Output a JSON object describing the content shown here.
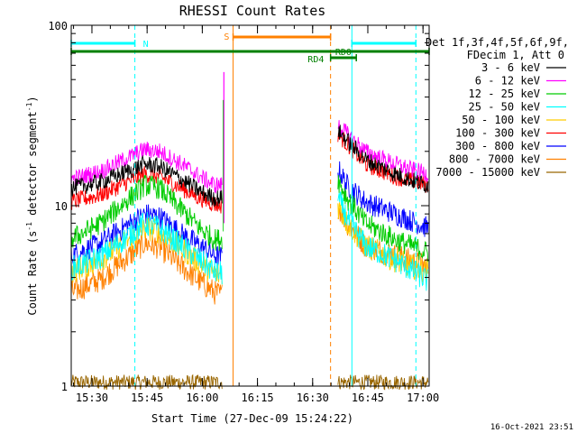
{
  "chart_data": {
    "type": "line",
    "title": "RHESSI Count Rates",
    "xlabel": "Start Time (27-Dec-09 15:24:22)",
    "ylabel_main": "Count Rate (s",
    "ylabel_sup1": "-1",
    "ylabel_mid": " detector segment",
    "ylabel_sup2": "-1",
    "ylabel_end": ")",
    "yscale": "log",
    "ylim": [
      1,
      100
    ],
    "xlim_minutes": [
      0,
      97.3
    ],
    "x_ticks": [
      {
        "label": "15:30",
        "min": 5.63
      },
      {
        "label": "15:45",
        "min": 20.63
      },
      {
        "label": "16:00",
        "min": 35.63
      },
      {
        "label": "16:15",
        "min": 50.63
      },
      {
        "label": "16:30",
        "min": 65.63
      },
      {
        "label": "16:45",
        "min": 80.63
      },
      {
        "label": "17:00",
        "min": 95.63
      }
    ],
    "y_ticks": [
      {
        "label": "1",
        "value": 1
      },
      {
        "label": "10",
        "value": 10
      },
      {
        "label": "100",
        "value": 100
      }
    ],
    "legend": {
      "header1": "Det 1f,3f,4f,5f,6f,9f,",
      "header2": "FDecim 1, Att 0",
      "position": "right"
    },
    "series": [
      {
        "name": "3 - 6 keV",
        "color": "#000000",
        "amp": 0.07,
        "segA": [
          {
            "t": 0,
            "v": 12.5
          },
          {
            "t": 8,
            "v": 13.5
          },
          {
            "t": 20,
            "v": 17
          },
          {
            "t": 24,
            "v": 16.5
          },
          {
            "t": 30,
            "v": 14
          },
          {
            "t": 35,
            "v": 12
          },
          {
            "t": 39,
            "v": 11
          },
          {
            "t": 41,
            "v": 11
          }
        ],
        "segB": [
          {
            "t": 72.5,
            "v": 26
          },
          {
            "t": 75,
            "v": 23
          },
          {
            "t": 80,
            "v": 18
          },
          {
            "t": 88,
            "v": 15
          },
          {
            "t": 94,
            "v": 13.5
          },
          {
            "t": 97,
            "v": 13
          }
        ]
      },
      {
        "name": "6 - 12 keV",
        "color": "#ff00ff",
        "amp": 0.07,
        "segA": [
          {
            "t": 0,
            "v": 14
          },
          {
            "t": 8,
            "v": 15.5
          },
          {
            "t": 20,
            "v": 20.5
          },
          {
            "t": 24,
            "v": 20
          },
          {
            "t": 30,
            "v": 17
          },
          {
            "t": 35,
            "v": 14.5
          },
          {
            "t": 39,
            "v": 13
          },
          {
            "t": 41,
            "v": 13
          }
        ],
        "segB": [
          {
            "t": 72.5,
            "v": 28
          },
          {
            "t": 75,
            "v": 25
          },
          {
            "t": 80,
            "v": 20
          },
          {
            "t": 88,
            "v": 17
          },
          {
            "t": 94,
            "v": 15.5
          },
          {
            "t": 97,
            "v": 15
          }
        ]
      },
      {
        "name": "12 - 25 keV",
        "color": "#00cc00",
        "amp": 0.09,
        "segA": [
          {
            "t": 0,
            "v": 6.5
          },
          {
            "t": 8,
            "v": 8
          },
          {
            "t": 20,
            "v": 13
          },
          {
            "t": 24,
            "v": 12.5
          },
          {
            "t": 30,
            "v": 9.5
          },
          {
            "t": 35,
            "v": 7.5
          },
          {
            "t": 39,
            "v": 6.5
          },
          {
            "t": 41,
            "v": 6.5
          }
        ],
        "segB": [
          {
            "t": 72.5,
            "v": 14
          },
          {
            "t": 75,
            "v": 11
          },
          {
            "t": 80,
            "v": 8
          },
          {
            "t": 88,
            "v": 6.5
          },
          {
            "t": 94,
            "v": 5.8
          },
          {
            "t": 97,
            "v": 5.5
          }
        ]
      },
      {
        "name": "25 - 50 keV",
        "color": "#00ffff",
        "amp": 0.1,
        "segA": [
          {
            "t": 0,
            "v": 4.5
          },
          {
            "t": 8,
            "v": 5.2
          },
          {
            "t": 20,
            "v": 8
          },
          {
            "t": 24,
            "v": 7.5
          },
          {
            "t": 30,
            "v": 6
          },
          {
            "t": 35,
            "v": 5
          },
          {
            "t": 39,
            "v": 4.3
          },
          {
            "t": 41,
            "v": 4.2
          }
        ],
        "segB": [
          {
            "t": 72.5,
            "v": 11
          },
          {
            "t": 75,
            "v": 8.5
          },
          {
            "t": 80,
            "v": 6
          },
          {
            "t": 88,
            "v": 5
          },
          {
            "t": 94,
            "v": 4.2
          },
          {
            "t": 97,
            "v": 3.8
          }
        ]
      },
      {
        "name": "50 - 100 keV",
        "color": "#ffcc00",
        "amp": 0.1,
        "segA": [
          {
            "t": 0,
            "v": 4.3
          },
          {
            "t": 8,
            "v": 5
          },
          {
            "t": 20,
            "v": 7.5
          },
          {
            "t": 24,
            "v": 7.2
          },
          {
            "t": 30,
            "v": 5.8
          },
          {
            "t": 35,
            "v": 4.8
          },
          {
            "t": 39,
            "v": 4.2
          },
          {
            "t": 41,
            "v": 4.1
          }
        ],
        "segB": [
          {
            "t": 72.5,
            "v": 10
          },
          {
            "t": 75,
            "v": 8
          },
          {
            "t": 80,
            "v": 6
          },
          {
            "t": 88,
            "v": 5
          },
          {
            "t": 94,
            "v": 4.5
          },
          {
            "t": 97,
            "v": 4.3
          }
        ]
      },
      {
        "name": "100 - 300 keV",
        "color": "#ff0000",
        "amp": 0.07,
        "segA": [
          {
            "t": 0,
            "v": 10.5
          },
          {
            "t": 8,
            "v": 11.5
          },
          {
            "t": 20,
            "v": 15
          },
          {
            "t": 24,
            "v": 14.5
          },
          {
            "t": 30,
            "v": 12.5
          },
          {
            "t": 35,
            "v": 11
          },
          {
            "t": 39,
            "v": 10.2
          },
          {
            "t": 41,
            "v": 10
          }
        ],
        "segB": [
          {
            "t": 72.5,
            "v": 25
          },
          {
            "t": 75,
            "v": 22
          },
          {
            "t": 80,
            "v": 17
          },
          {
            "t": 88,
            "v": 14.5
          },
          {
            "t": 94,
            "v": 13.5
          },
          {
            "t": 97,
            "v": 13
          }
        ]
      },
      {
        "name": "300 - 800 keV",
        "color": "#0000ff",
        "amp": 0.09,
        "segA": [
          {
            "t": 0,
            "v": 5.3
          },
          {
            "t": 8,
            "v": 6.2
          },
          {
            "t": 20,
            "v": 9
          },
          {
            "t": 24,
            "v": 8.7
          },
          {
            "t": 30,
            "v": 7
          },
          {
            "t": 35,
            "v": 6
          },
          {
            "t": 39,
            "v": 5.3
          },
          {
            "t": 41,
            "v": 5.2
          }
        ],
        "segB": [
          {
            "t": 72.5,
            "v": 16
          },
          {
            "t": 75,
            "v": 13
          },
          {
            "t": 80,
            "v": 10.5
          },
          {
            "t": 88,
            "v": 9
          },
          {
            "t": 94,
            "v": 8
          },
          {
            "t": 97,
            "v": 7.5
          }
        ]
      },
      {
        "name": "800 - 7000 keV",
        "color": "#ff8000",
        "amp": 0.1,
        "segA": [
          {
            "t": 0,
            "v": 3.3
          },
          {
            "t": 8,
            "v": 3.9
          },
          {
            "t": 20,
            "v": 6.2
          },
          {
            "t": 24,
            "v": 5.9
          },
          {
            "t": 30,
            "v": 4.6
          },
          {
            "t": 35,
            "v": 3.8
          },
          {
            "t": 39,
            "v": 3.3
          },
          {
            "t": 41,
            "v": 3.2
          }
        ],
        "segB": [
          {
            "t": 72.5,
            "v": 10
          },
          {
            "t": 75,
            "v": 8
          },
          {
            "t": 80,
            "v": 6
          },
          {
            "t": 88,
            "v": 5.3
          },
          {
            "t": 94,
            "v": 4.8
          },
          {
            "t": 97,
            "v": 4.6
          }
        ]
      },
      {
        "name": "7000 - 15000 keV",
        "color": "#996600",
        "amp": 0.06,
        "segA": [
          {
            "t": 0,
            "v": 1.05
          },
          {
            "t": 41,
            "v": 1.05
          }
        ],
        "segB": [
          {
            "t": 72.5,
            "v": 1.05
          },
          {
            "t": 97,
            "v": 1.05
          }
        ]
      }
    ],
    "spike": {
      "t": 41.5,
      "min": 8,
      "max": 55
    },
    "vlines": [
      {
        "min": 0.0,
        "color": "#00ffff",
        "style": "solid"
      },
      {
        "min": 17.3,
        "color": "#00ffff",
        "style": "dashed"
      },
      {
        "min": 44.0,
        "color": "#ff8000",
        "style": "solid"
      },
      {
        "min": 70.5,
        "color": "#ff8000",
        "style": "dashed"
      },
      {
        "min": 76.3,
        "color": "#00ffff",
        "style": "solid"
      },
      {
        "min": 93.7,
        "color": "#00ffff",
        "style": "dashed"
      }
    ],
    "flag_bars": [
      {
        "label": "N",
        "color": "#00ffff",
        "y": 80,
        "ranges": [
          [
            0,
            17.3
          ],
          [
            76.3,
            93.7
          ]
        ],
        "label_min": 19.5,
        "label_y": 80,
        "label_anchor": "start"
      },
      {
        "label": "S",
        "color": "#ff8000",
        "y": 90,
        "ranges": [
          [
            44.0,
            70.5
          ]
        ],
        "label_min": 43.0,
        "label_y": 90,
        "label_anchor": "end"
      },
      {
        "label": "RD0",
        "color": "#008000",
        "y": 70,
        "ranges": [
          [
            0,
            97.3
          ]
        ],
        "label_min": 74.0,
        "label_y": 74,
        "label_anchor": "middle"
      },
      {
        "label": "RD4",
        "color": "#008000",
        "y": 66,
        "ranges": [
          [
            70.5,
            77.5
          ]
        ],
        "label_min": 66.5,
        "label_y": 62,
        "label_anchor": "middle"
      }
    ]
  },
  "footer": {
    "timestamp": "16-Oct-2021 23:51"
  }
}
